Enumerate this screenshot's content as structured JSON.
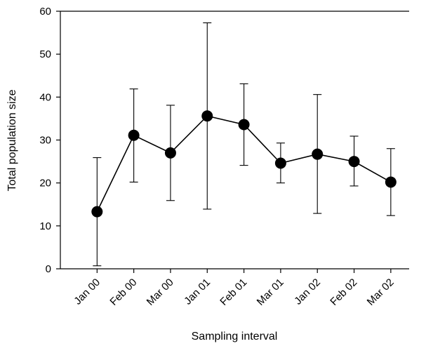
{
  "chart_data": {
    "type": "line",
    "title": "",
    "xlabel": "Sampling interval",
    "ylabel": "Total population size",
    "categories": [
      "Jan 00",
      "Feb 00",
      "Mar 00",
      "Jan 01",
      "Feb 01",
      "Mar 01",
      "Jan 02",
      "Feb 02",
      "Mar 02"
    ],
    "series": [
      {
        "values": [
          13.3,
          31.1,
          27.0,
          35.6,
          33.6,
          24.6,
          26.7,
          25.0,
          20.2
        ],
        "error_upper": [
          25.9,
          41.9,
          38.1,
          57.3,
          43.1,
          29.3,
          40.6,
          30.9,
          28.0
        ],
        "error_lower": [
          0.7,
          20.2,
          15.9,
          13.9,
          24.1,
          20.0,
          12.9,
          19.3,
          12.4
        ]
      }
    ],
    "ylim": [
      0,
      60
    ],
    "yticks": [
      0,
      10,
      20,
      30,
      40,
      50,
      60
    ],
    "grid": false,
    "colors": {
      "line": "#000000",
      "marker": "#000000",
      "axis": "#000000"
    }
  }
}
